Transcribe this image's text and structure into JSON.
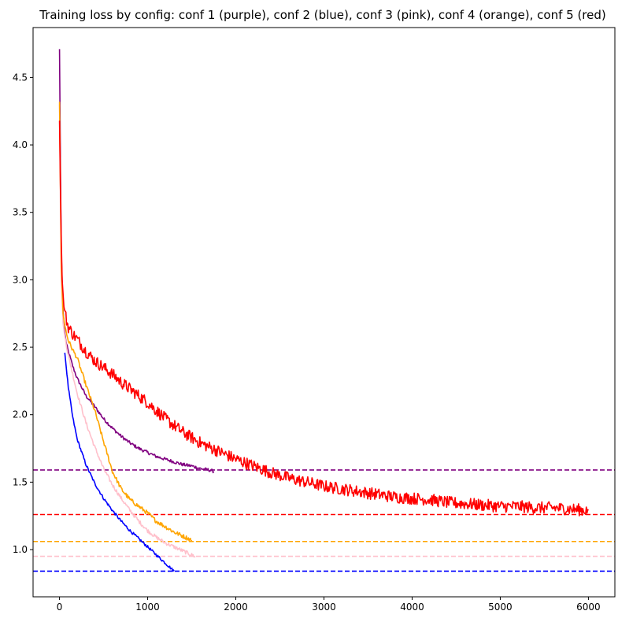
{
  "chart_data": {
    "type": "line",
    "title": "Training loss by config: conf 1 (purple), conf 2 (blue), conf 3 (pink), conf 4 (orange), conf 5 (red)",
    "xlabel": "",
    "ylabel": "",
    "xlim": [
      -300,
      6300
    ],
    "ylim": [
      0.65,
      4.87
    ],
    "xticks": [
      0,
      1000,
      2000,
      3000,
      4000,
      5000,
      6000
    ],
    "yticks": [
      1.0,
      1.5,
      2.0,
      2.5,
      3.0,
      3.5,
      4.0,
      4.5
    ],
    "xtick_labels": [
      "0",
      "1000",
      "2000",
      "3000",
      "4000",
      "5000",
      "6000"
    ],
    "ytick_labels": [
      "1.0",
      "1.5",
      "2.0",
      "2.5",
      "3.0",
      "3.5",
      "4.0",
      "4.5"
    ],
    "grid": false,
    "series": [
      {
        "color": "#800080",
        "x": [
          0,
          10,
          20,
          40,
          60,
          80,
          100,
          150,
          200,
          300,
          400,
          500,
          600,
          700,
          800,
          900,
          1000,
          1100,
          1200,
          1300,
          1400,
          1500,
          1600,
          1700,
          1750
        ],
        "y": [
          4.71,
          3.9,
          3.2,
          2.78,
          2.6,
          2.52,
          2.47,
          2.36,
          2.27,
          2.14,
          2.06,
          1.97,
          1.9,
          1.84,
          1.79,
          1.75,
          1.72,
          1.69,
          1.67,
          1.65,
          1.63,
          1.62,
          1.6,
          1.59,
          1.58
        ],
        "noise": 0.012
      },
      {
        "color": "#0000ff",
        "x": [
          60,
          100,
          150,
          200,
          300,
          400,
          500,
          600,
          700,
          800,
          900,
          1000,
          1100,
          1200,
          1250,
          1300
        ],
        "y": [
          2.46,
          2.2,
          1.98,
          1.82,
          1.63,
          1.49,
          1.38,
          1.29,
          1.21,
          1.14,
          1.08,
          1.02,
          0.96,
          0.9,
          0.87,
          0.84
        ],
        "noise": 0.01
      },
      {
        "color": "#ffc0cb",
        "x": [
          0,
          10,
          20,
          40,
          60,
          80,
          100,
          150,
          200,
          300,
          400,
          500,
          600,
          700,
          800,
          900,
          1000,
          1100,
          1200,
          1300,
          1400,
          1500,
          1540
        ],
        "y": [
          4.3,
          3.6,
          3.0,
          2.68,
          2.58,
          2.51,
          2.44,
          2.3,
          2.16,
          1.94,
          1.76,
          1.6,
          1.48,
          1.38,
          1.29,
          1.21,
          1.14,
          1.09,
          1.05,
          1.02,
          0.99,
          0.96,
          0.95
        ],
        "noise": 0.014
      },
      {
        "color": "#ffa500",
        "x": [
          0,
          10,
          20,
          40,
          60,
          80,
          100,
          150,
          200,
          300,
          400,
          500,
          600,
          700,
          800,
          900,
          1000,
          1100,
          1200,
          1300,
          1400,
          1500
        ],
        "y": [
          4.32,
          3.7,
          3.1,
          2.75,
          2.66,
          2.6,
          2.55,
          2.48,
          2.42,
          2.22,
          2.03,
          1.8,
          1.58,
          1.45,
          1.37,
          1.32,
          1.27,
          1.21,
          1.17,
          1.13,
          1.1,
          1.07
        ],
        "noise": 0.016
      },
      {
        "color": "#ff0000",
        "x": [
          0,
          10,
          20,
          30,
          50,
          80,
          100,
          150,
          200,
          300,
          400,
          500,
          600,
          700,
          800,
          900,
          1000,
          1100,
          1200,
          1300,
          1400,
          1500,
          1600,
          1700,
          1800,
          1900,
          2000,
          2200,
          2400,
          2600,
          2800,
          3000,
          3200,
          3400,
          3600,
          3800,
          4000,
          4200,
          4400,
          4600,
          4800,
          5000,
          5200,
          5400,
          5600,
          5800,
          6000
        ],
        "y": [
          4.18,
          3.7,
          3.3,
          3.0,
          2.8,
          2.7,
          2.65,
          2.6,
          2.56,
          2.47,
          2.4,
          2.35,
          2.3,
          2.24,
          2.19,
          2.14,
          2.09,
          2.03,
          1.97,
          1.92,
          1.87,
          1.83,
          1.79,
          1.76,
          1.73,
          1.7,
          1.67,
          1.62,
          1.57,
          1.53,
          1.5,
          1.47,
          1.45,
          1.43,
          1.41,
          1.39,
          1.38,
          1.37,
          1.35,
          1.34,
          1.33,
          1.32,
          1.32,
          1.31,
          1.31,
          1.3,
          1.29
        ],
        "noise": 0.045
      }
    ],
    "hlines": [
      {
        "y": 1.59,
        "color": "#800080",
        "style": "dashed"
      },
      {
        "y": 1.26,
        "color": "#ff0000",
        "style": "dashed"
      },
      {
        "y": 1.06,
        "color": "#ffa500",
        "style": "dashed"
      },
      {
        "y": 0.95,
        "color": "#ffc0cb",
        "style": "dashed"
      },
      {
        "y": 0.84,
        "color": "#0000ff",
        "style": "dashed"
      }
    ]
  }
}
